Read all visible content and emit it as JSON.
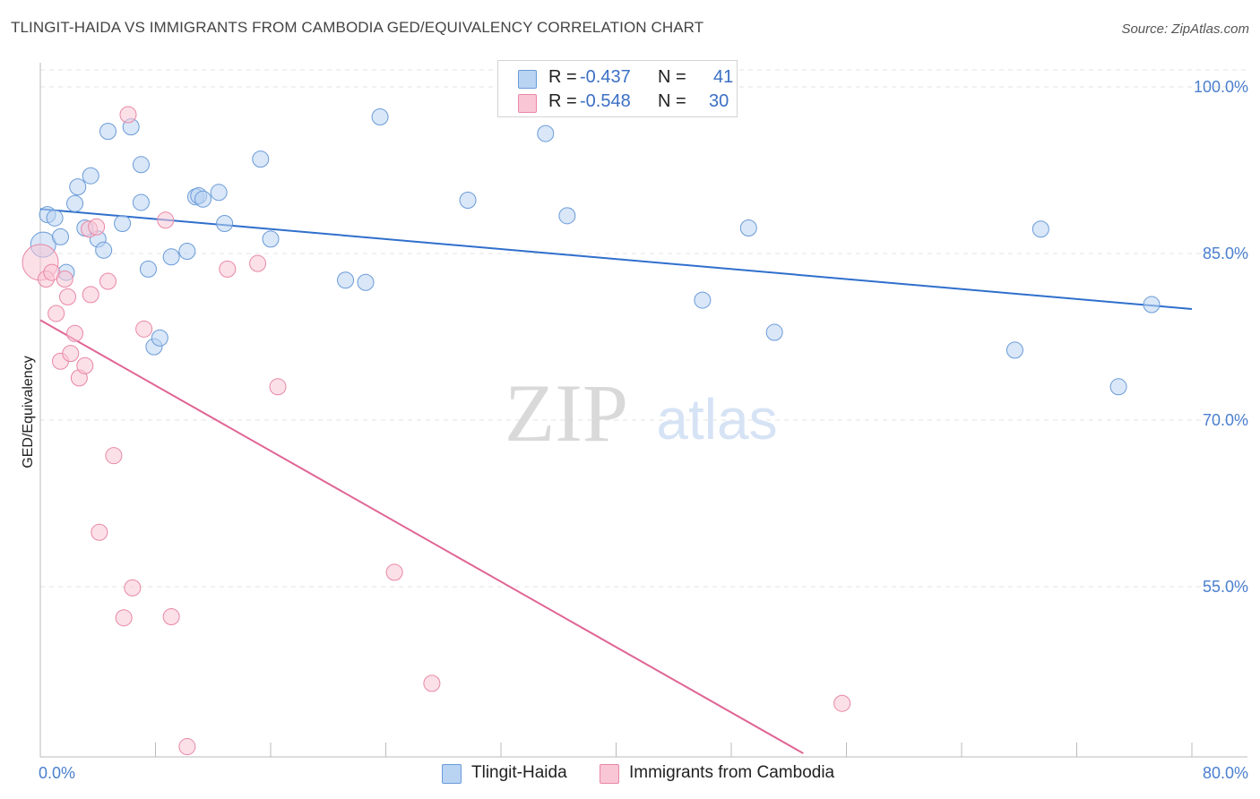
{
  "title": "TLINGIT-HAIDA VS IMMIGRANTS FROM CAMBODIA GED/EQUIVALENCY CORRELATION CHART",
  "source": "Source: ZipAtlas.com",
  "watermark": {
    "zip": "ZIP",
    "atlas": "atlas"
  },
  "colors": {
    "blue_fill": "#b9d3f3",
    "blue_stroke": "#6a9bd8",
    "blue_line": "#2f6fcc",
    "pink_fill": "#f9c6d6",
    "pink_stroke": "#e887a6",
    "pink_line": "#e06595",
    "tick_text": "#4a7fcf",
    "grid": "#e3e3e3"
  },
  "legend": {
    "rows": [
      {
        "r_label": "R =",
        "r_value": "-0.437",
        "n_label": "N =",
        "n_value": "41"
      },
      {
        "r_label": "R =",
        "r_value": "-0.548",
        "n_label": "N =",
        "n_value": "30"
      }
    ]
  },
  "bottom_legend": {
    "series1": "Tlingit-Haida",
    "series2": "Immigrants from Cambodia"
  },
  "chart_data": {
    "type": "scatter",
    "title": "TLINGIT-HAIDA VS IMMIGRANTS FROM CAMBODIA GED/EQUIVALENCY CORRELATION CHART",
    "xlabel": "",
    "ylabel": "GED/Equivalency",
    "xlim": [
      0,
      80
    ],
    "ylim": [
      40,
      103
    ],
    "x_ticks_labeled": [
      "0.0%",
      "80.0%"
    ],
    "y_ticks": [
      {
        "value": 100,
        "label": "100.0%"
      },
      {
        "value": 85,
        "label": "85.0%"
      },
      {
        "value": 70,
        "label": "70.0%"
      },
      {
        "value": 55,
        "label": "55.0%"
      }
    ],
    "grid": true,
    "legend_position": "top-center",
    "series": [
      {
        "name": "Tlingit-Haida",
        "color": "blue",
        "trend": {
          "x0": 0,
          "y0": 89.0,
          "x1": 80,
          "y1": 80.0
        },
        "points": [
          [
            0.2,
            85.8,
            14
          ],
          [
            0.5,
            88.5,
            9
          ],
          [
            1.0,
            88.2,
            9
          ],
          [
            1.4,
            86.5,
            9
          ],
          [
            1.8,
            83.3,
            9
          ],
          [
            2.4,
            89.5,
            9
          ],
          [
            2.6,
            91.0,
            9
          ],
          [
            3.1,
            87.3,
            9
          ],
          [
            3.5,
            92.0,
            9
          ],
          [
            4.0,
            86.3,
            9
          ],
          [
            4.4,
            85.3,
            9
          ],
          [
            4.7,
            96.0,
            9
          ],
          [
            5.7,
            87.7,
            9
          ],
          [
            6.3,
            96.4,
            9
          ],
          [
            7.0,
            93.0,
            9
          ],
          [
            7.0,
            89.6,
            9
          ],
          [
            7.5,
            83.6,
            9
          ],
          [
            7.9,
            76.6,
            9
          ],
          [
            8.3,
            77.4,
            9
          ],
          [
            9.1,
            84.7,
            9
          ],
          [
            10.2,
            85.2,
            9
          ],
          [
            10.8,
            90.1,
            9
          ],
          [
            11.0,
            90.2,
            9
          ],
          [
            11.3,
            89.9,
            9
          ],
          [
            12.4,
            90.5,
            9
          ],
          [
            12.8,
            87.7,
            9
          ],
          [
            15.3,
            93.5,
            9
          ],
          [
            16.0,
            86.3,
            9
          ],
          [
            21.2,
            82.6,
            9
          ],
          [
            22.6,
            82.4,
            9
          ],
          [
            23.6,
            97.3,
            9
          ],
          [
            29.7,
            89.8,
            9
          ],
          [
            35.1,
            95.8,
            9
          ],
          [
            36.6,
            88.4,
            9
          ],
          [
            46.0,
            80.8,
            9
          ],
          [
            49.2,
            87.3,
            9
          ],
          [
            51.0,
            77.9,
            9
          ],
          [
            67.7,
            76.3,
            9
          ],
          [
            69.5,
            87.2,
            9
          ],
          [
            74.9,
            73.0,
            9
          ],
          [
            77.2,
            80.4,
            9
          ]
        ]
      },
      {
        "name": "Immigrants from Cambodia",
        "color": "pink",
        "trend": {
          "x0": 0,
          "y0": 79.0,
          "x1": 53,
          "y1": 40.0
        },
        "points": [
          [
            0.0,
            84.2,
            20
          ],
          [
            0.4,
            82.7,
            9
          ],
          [
            0.8,
            83.3,
            9
          ],
          [
            1.1,
            79.6,
            9
          ],
          [
            1.4,
            75.3,
            9
          ],
          [
            1.7,
            82.7,
            9
          ],
          [
            1.9,
            81.1,
            9
          ],
          [
            2.1,
            76.0,
            9
          ],
          [
            2.4,
            77.8,
            9
          ],
          [
            2.7,
            73.8,
            9
          ],
          [
            3.1,
            74.9,
            9
          ],
          [
            3.4,
            87.2,
            9
          ],
          [
            3.5,
            81.3,
            9
          ],
          [
            3.9,
            87.4,
            9
          ],
          [
            4.1,
            59.9,
            9
          ],
          [
            4.7,
            82.5,
            9
          ],
          [
            5.1,
            66.8,
            9
          ],
          [
            5.8,
            52.2,
            9
          ],
          [
            6.1,
            97.5,
            9
          ],
          [
            6.4,
            54.9,
            9
          ],
          [
            7.2,
            78.2,
            9
          ],
          [
            8.7,
            88.0,
            9
          ],
          [
            9.1,
            52.3,
            9
          ],
          [
            10.2,
            40.6,
            9
          ],
          [
            13.0,
            83.6,
            9
          ],
          [
            15.1,
            84.1,
            9
          ],
          [
            16.5,
            73.0,
            9
          ],
          [
            24.6,
            56.3,
            9
          ],
          [
            27.2,
            46.3,
            9
          ],
          [
            55.7,
            44.5,
            9
          ]
        ]
      }
    ]
  }
}
